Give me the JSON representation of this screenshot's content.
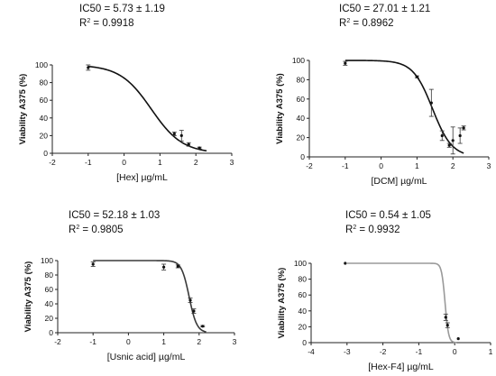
{
  "panels": [
    {
      "ic50_text": "IC50 = 5.73 ± 1.19",
      "r2_label": "R",
      "r2_sup": "2",
      "r2_value": " = 0.9918"
    },
    {
      "ic50_text": "IC50 = 27.01 ± 1.21",
      "r2_label": "R",
      "r2_sup": "2",
      "r2_value": " = 0.8962"
    },
    {
      "ic50_text": "IC50 = 52.18 ± 1.03",
      "r2_label": "R",
      "r2_sup": "2",
      "r2_value": " = 0.9805"
    },
    {
      "ic50_text": "IC50 = 0.54 ± 1.05",
      "r2_label": "R",
      "r2_sup": "2",
      "r2_value": " = 0.9932"
    }
  ],
  "chart_data": [
    {
      "type": "scatter",
      "xlabel": "[Hex] µg/mL",
      "ylabel": "Viability A375 (%)",
      "xlim": [
        -2,
        3
      ],
      "ylim": [
        0,
        100
      ],
      "xticks": [
        -2,
        -1,
        0,
        1,
        2,
        3
      ],
      "yticks": [
        0,
        20,
        40,
        60,
        80,
        100
      ],
      "curve_color": "#111111",
      "fit": {
        "top": 100,
        "bottom": 0,
        "logIC50": 0.758,
        "hill": -1.0,
        "x_from": -1,
        "x_to": 2.3
      },
      "points": [
        {
          "x": -1.0,
          "y": 97,
          "err": 3
        },
        {
          "x": 1.4,
          "y": 22,
          "err": 2
        },
        {
          "x": 1.6,
          "y": 20,
          "err": 6
        },
        {
          "x": 1.8,
          "y": 10,
          "err": 2
        },
        {
          "x": 2.1,
          "y": 6,
          "err": 1
        }
      ]
    },
    {
      "type": "scatter",
      "xlabel": "[DCM] µg/mL",
      "ylabel": "Viability A375 (%)",
      "xlim": [
        -2,
        3
      ],
      "ylim": [
        0,
        100
      ],
      "xticks": [
        -2,
        -1,
        0,
        1,
        2,
        3
      ],
      "yticks": [
        0,
        20,
        40,
        60,
        80,
        100
      ],
      "curve_color": "#111111",
      "fit": {
        "top": 100,
        "bottom": 0,
        "logIC50": 1.431,
        "hill": -1.6,
        "x_from": -1,
        "x_to": 2.3
      },
      "points": [
        {
          "x": -1.0,
          "y": 97,
          "err": 2
        },
        {
          "x": 1.0,
          "y": 83,
          "err": 1
        },
        {
          "x": 1.4,
          "y": 56,
          "err": 14
        },
        {
          "x": 1.7,
          "y": 22,
          "err": 5
        },
        {
          "x": 1.9,
          "y": 12,
          "err": 2
        },
        {
          "x": 2.0,
          "y": 17,
          "err": 14
        },
        {
          "x": 2.2,
          "y": 22,
          "err": 8
        },
        {
          "x": 2.3,
          "y": 30,
          "err": 2
        }
      ]
    },
    {
      "type": "scatter",
      "xlabel": "[Usnic acid]  µg/mL",
      "ylabel": "Viability A375 (%)",
      "xlim": [
        -2,
        3
      ],
      "ylim": [
        0,
        100
      ],
      "xticks": [
        -2,
        -1,
        0,
        1,
        2,
        3
      ],
      "yticks": [
        0,
        20,
        40,
        60,
        80,
        100
      ],
      "curve_color": "#3a3a3a",
      "fit": {
        "top": 100,
        "bottom": 0,
        "logIC50": 1.717,
        "hill": -4.0,
        "x_from": -1,
        "x_to": 2.2
      },
      "points": [
        {
          "x": -1.0,
          "y": 95,
          "err": 3
        },
        {
          "x": 1.0,
          "y": 91,
          "err": 4
        },
        {
          "x": 1.4,
          "y": 92,
          "err": 2
        },
        {
          "x": 1.75,
          "y": 45,
          "err": 3
        },
        {
          "x": 1.85,
          "y": 30,
          "err": 3
        },
        {
          "x": 2.1,
          "y": 9,
          "err": 1
        }
      ]
    },
    {
      "type": "scatter",
      "xlabel": "[Hex-F4] µg/mL",
      "ylabel": "Viability A375 (%)",
      "xlim": [
        -4,
        1
      ],
      "ylim": [
        0,
        100
      ],
      "xticks": [
        -4,
        -3,
        -2,
        -1,
        0,
        1
      ],
      "yticks": [
        0,
        20,
        40,
        60,
        80,
        100
      ],
      "curve_color": "#9a9a9a",
      "fit": {
        "top": 100,
        "bottom": 0,
        "logIC50": -0.268,
        "hill": -9.0,
        "x_from": -3,
        "x_to": 0.05
      },
      "points": [
        {
          "x": -3.05,
          "y": 100,
          "err": 0
        },
        {
          "x": -0.25,
          "y": 32,
          "err": 4
        },
        {
          "x": -0.2,
          "y": 22,
          "err": 3
        },
        {
          "x": 0.1,
          "y": 5,
          "err": 0
        }
      ]
    }
  ]
}
